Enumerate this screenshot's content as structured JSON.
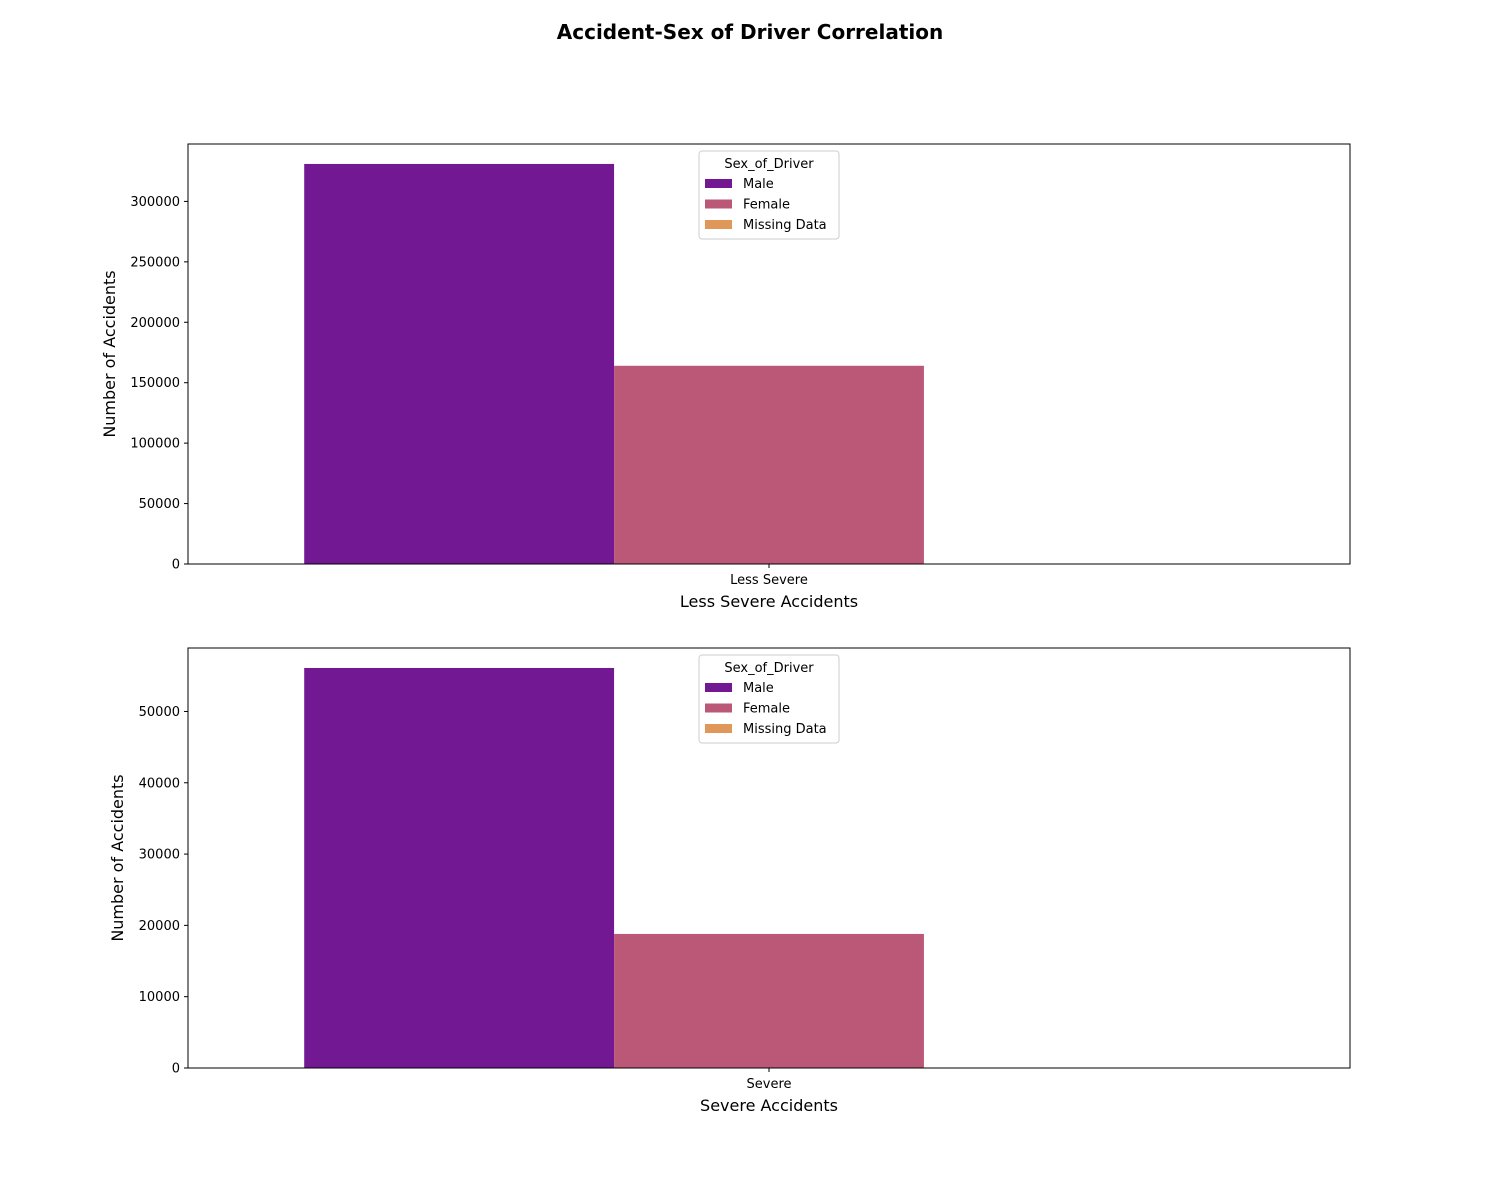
{
  "title": "Accident-Sex of Driver Correlation",
  "legend_title": "Sex_of_Driver",
  "colors": {
    "Male": "#721893",
    "Female": "#bb5878",
    "Missing Data": "#e0975a"
  },
  "chart_data": [
    {
      "type": "bar",
      "categories": [
        "Less Severe"
      ],
      "series": [
        {
          "name": "Male",
          "values": [
            331000
          ]
        },
        {
          "name": "Female",
          "values": [
            164000
          ]
        },
        {
          "name": "Missing Data",
          "values": [
            0
          ]
        }
      ],
      "title": "",
      "xlabel": "Less Severe Accidents",
      "ylabel": "Number of Accidents",
      "ylim": [
        0,
        347500
      ],
      "yticks": [
        0,
        50000,
        100000,
        150000,
        200000,
        250000,
        300000
      ],
      "legend": "upper center",
      "grid": false
    },
    {
      "type": "bar",
      "categories": [
        "Severe"
      ],
      "series": [
        {
          "name": "Male",
          "values": [
            56100
          ]
        },
        {
          "name": "Female",
          "values": [
            18800
          ]
        },
        {
          "name": "Missing Data",
          "values": [
            0
          ]
        }
      ],
      "title": "",
      "xlabel": "Severe Accidents",
      "ylabel": "Number of Accidents",
      "ylim": [
        0,
        58900
      ],
      "yticks": [
        0,
        10000,
        20000,
        30000,
        40000,
        50000
      ],
      "legend": "upper center",
      "grid": false
    }
  ]
}
